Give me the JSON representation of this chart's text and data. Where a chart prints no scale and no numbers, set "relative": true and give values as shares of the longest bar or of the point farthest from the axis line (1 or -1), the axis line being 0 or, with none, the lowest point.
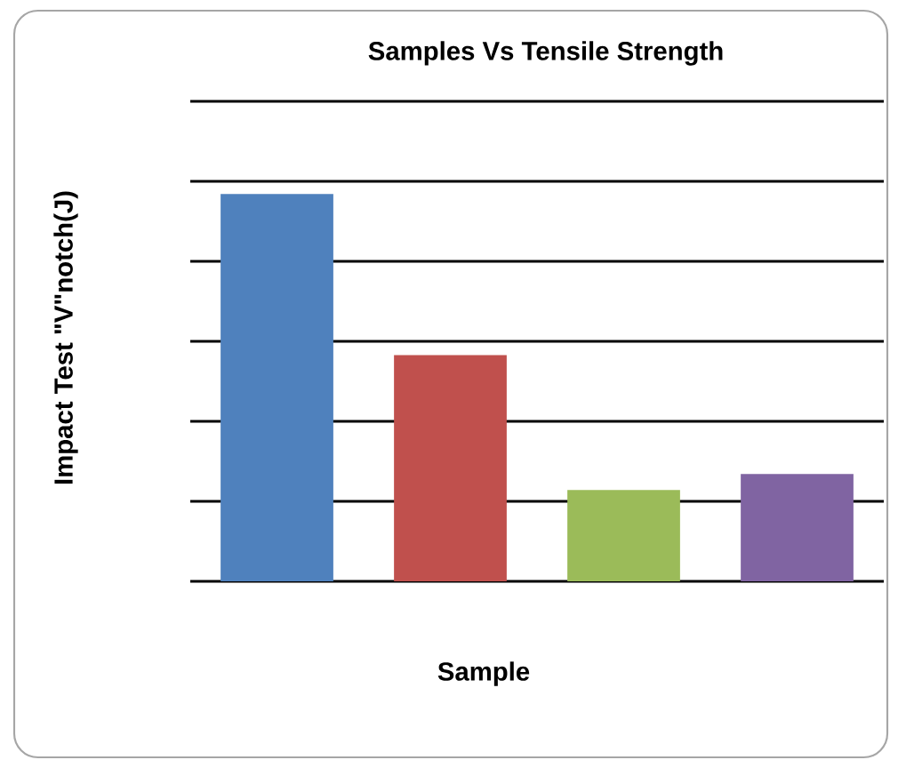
{
  "chart_data": {
    "type": "bar",
    "title": "Samples Vs Tensile Strength",
    "xlabel": "Sample",
    "ylabel": "Impact Test \"V\"notch(J)",
    "categories": [
      null,
      null,
      null,
      null
    ],
    "values": [
      1,
      0.584,
      0.236,
      0.277
    ],
    "colors": [
      "#4f81bd",
      "#c0504d",
      "#9bbb59",
      "#8064a2"
    ],
    "relative": true,
    "grid": "y"
  }
}
